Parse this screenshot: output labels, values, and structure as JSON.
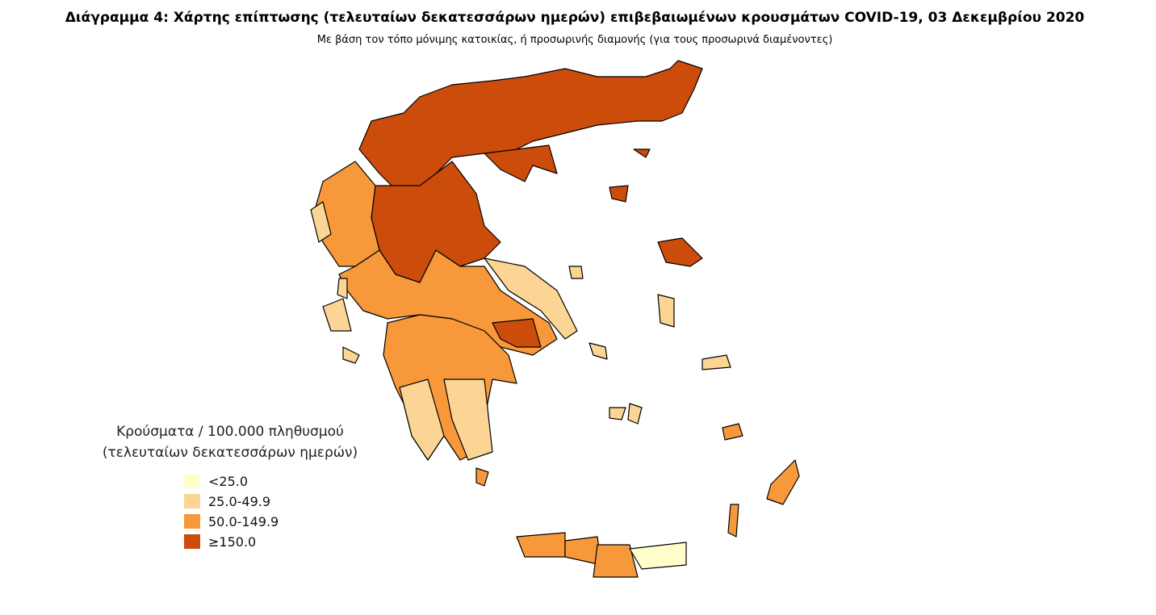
{
  "header": {
    "title": "Διάγραμμα 4: Χάρτης επίπτωσης (τελευταίων δεκατεσσάρων ημερών) επιβεβαιωμένων κρουσμάτων COVID-19, 03 Δεκεμβρίου 2020",
    "subtitle": "Με βάση τον τόπο μόνιμης κατοικίας, ή προσωρινής διαμονής (για τους προσωρινά διαμένοντες)"
  },
  "legend": {
    "title": [
      "Κρούσματα / 100.000 πληθυσμού",
      "(τελευταίων δεκατεσσάρων ημερών)"
    ],
    "items": [
      {
        "label": "<25.0",
        "color": "#ffffcc"
      },
      {
        "label": "25.0-49.9",
        "color": "#fcd594"
      },
      {
        "label": "50.0-149.9",
        "color": "#f7993b"
      },
      {
        "label": "≥150.0",
        "color": "#cc4c0c"
      }
    ]
  }
}
